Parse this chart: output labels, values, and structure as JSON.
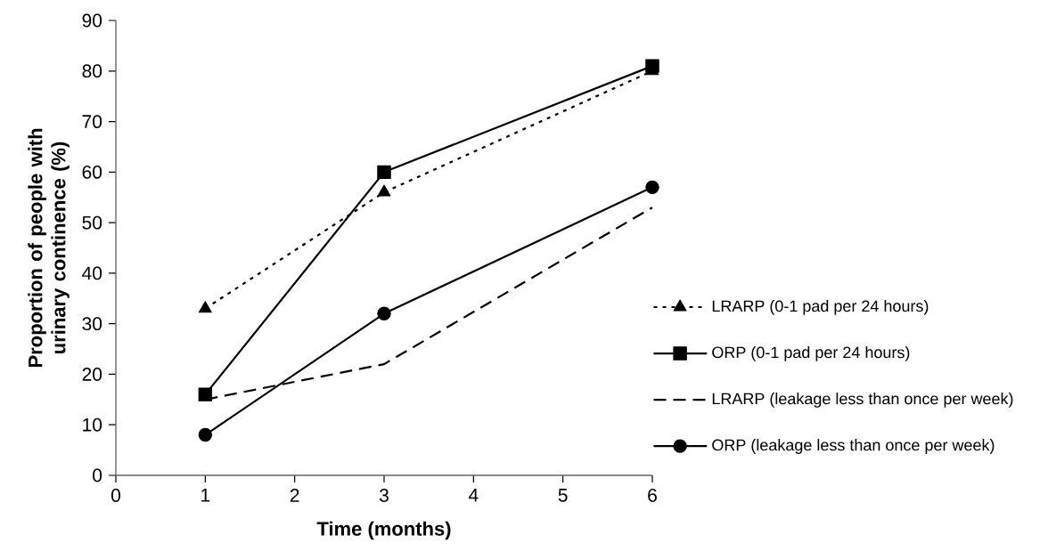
{
  "chart_data": {
    "type": "line",
    "xlabel": "Time (months)",
    "ylabel": "Proportion of people with urinary continence (%)",
    "x": [
      1,
      3,
      6
    ],
    "series": [
      {
        "name": "LRARP (0-1 pad per 24 hours)",
        "color": "#000000",
        "values": [
          33,
          56,
          80
        ],
        "marker": "triangle",
        "line_style": "dotted"
      },
      {
        "name": "ORP (0-1 pad per 24 hours)",
        "color": "#000000",
        "values": [
          16,
          60,
          81
        ],
        "marker": "square",
        "line_style": "solid"
      },
      {
        "name": "LRARP (leakage less than once per week)",
        "color": "#000000",
        "values": [
          15,
          22,
          53
        ],
        "marker": "none",
        "line_style": "dashed"
      },
      {
        "name": "ORP (leakage less than once per week)",
        "color": "#000000",
        "values": [
          8,
          32,
          57
        ],
        "marker": "circle",
        "line_style": "solid"
      }
    ],
    "xlim": [
      0,
      6
    ],
    "xticks": [
      0,
      1,
      2,
      3,
      4,
      5,
      6
    ],
    "ylim": [
      0,
      90
    ],
    "yticks": [
      0,
      10,
      20,
      30,
      40,
      50,
      60,
      70,
      80,
      90
    ],
    "grid": false,
    "legend": "right"
  }
}
